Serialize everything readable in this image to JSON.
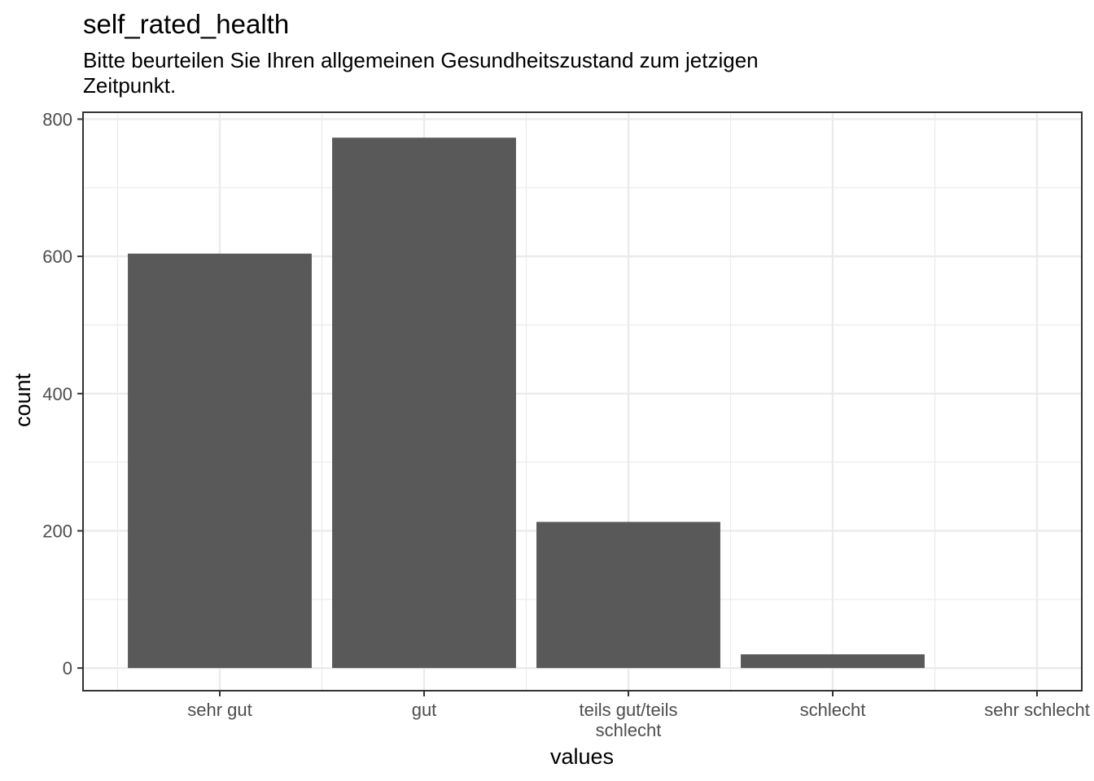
{
  "chart_data": {
    "type": "bar",
    "title": "self_rated_health",
    "subtitle_lines": [
      "Bitte beurteilen Sie Ihren allgemeinen Gesundheitszustand zum jetzigen",
      "Zeitpunkt."
    ],
    "xlabel": "values",
    "ylabel": "count",
    "categories": [
      "sehr gut",
      "gut",
      "teils gut/teils schlecht",
      "schlecht",
      "sehr schlecht"
    ],
    "category_label_lines": [
      [
        "sehr gut"
      ],
      [
        "gut"
      ],
      [
        "teils gut/teils",
        "schlecht"
      ],
      [
        "schlecht"
      ],
      [
        "sehr schlecht"
      ]
    ],
    "values": [
      604,
      773,
      213,
      20,
      0
    ],
    "ylim": [
      -33,
      810
    ],
    "y_ticks": [
      0,
      200,
      400,
      600,
      800
    ],
    "y_tick_labels": [
      "0",
      "200",
      "400",
      "600",
      "800"
    ],
    "grid": true,
    "bar_color": "#595959",
    "grid_color": "#ebebeb",
    "panel_border_color": "#333333"
  }
}
